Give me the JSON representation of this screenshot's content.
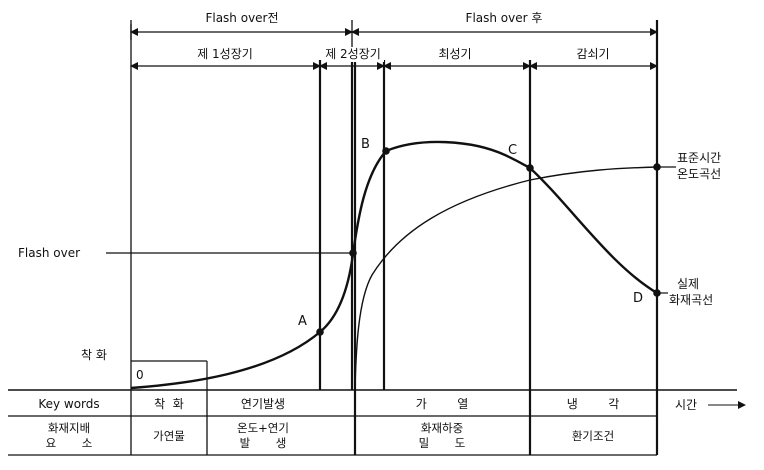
{
  "phases_top": {
    "before": "Flash over전",
    "after": "Flash over 후"
  },
  "stages": {
    "growth1": "제 1성장기",
    "growth2": "제 2성장기",
    "peak": "최성기",
    "decay": "감쇠기"
  },
  "labels": {
    "flashover": "Flash over",
    "ignition": "착 화",
    "origin": "0",
    "standard_curve_line1": "표준시간",
    "standard_curve_line2": "온도곡선",
    "actual_curve_line1": "실제",
    "actual_curve_line2": "화재곡선",
    "point_a": "A",
    "point_b": "B",
    "point_c": "C",
    "point_d": "D"
  },
  "table": {
    "row1": {
      "header": "Key words",
      "ignition": "착  화",
      "smoke": "연기발생",
      "heating": "가        열",
      "cooling": "냉        각",
      "time": "시간"
    },
    "row2": {
      "header_line1": "화재지배",
      "header_line2": "요       소",
      "fuel": "가연물",
      "temp_line1": "온도+연기",
      "temp_line2": "발       생",
      "load_line1": "화재하중",
      "load_line2": "밀       도",
      "vent": "환기조건"
    }
  },
  "colors": {
    "ink": "#111111",
    "background": "#ffffff"
  }
}
